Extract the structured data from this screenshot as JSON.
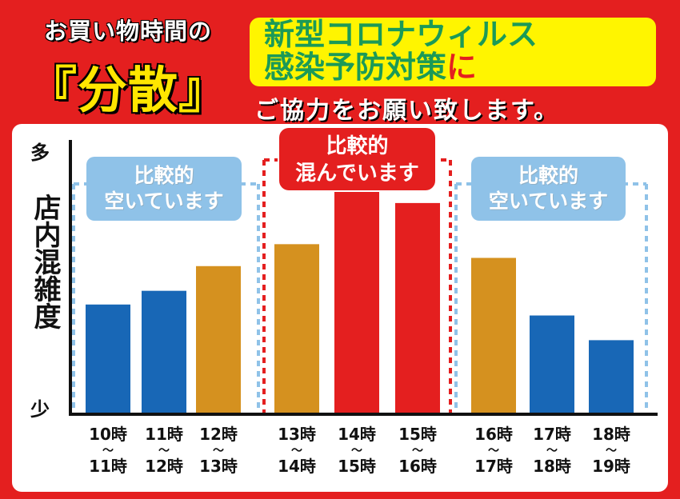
{
  "headline": {
    "line1": "お買い物時間の",
    "line2": "『分散』"
  },
  "notice": {
    "line1": "新型コロナウィルス",
    "line2_main": "感染予防対策",
    "line2_accent": "に"
  },
  "request": "ご協力をお願い致します。",
  "chart_data": {
    "type": "bar",
    "ylabel": "店内混雑度",
    "y_top_label": "多",
    "y_bottom_label": "少",
    "ylim": [
      0,
      100
    ],
    "categories": [
      {
        "start": "10時",
        "end": "11時"
      },
      {
        "start": "11時",
        "end": "12時"
      },
      {
        "start": "12時",
        "end": "13時"
      },
      {
        "start": "13時",
        "end": "14時"
      },
      {
        "start": "14時",
        "end": "15時"
      },
      {
        "start": "15時",
        "end": "16時"
      },
      {
        "start": "16時",
        "end": "17時"
      },
      {
        "start": "17時",
        "end": "18時"
      },
      {
        "start": "18時",
        "end": "19時"
      }
    ],
    "tilde": "〜",
    "values": [
      40,
      45,
      54,
      62,
      82,
      77,
      57,
      36,
      27
    ],
    "bar_colors": [
      "#1867b6",
      "#1867b6",
      "#d5911f",
      "#d5911f",
      "#e41f1f",
      "#e41f1f",
      "#d5911f",
      "#1867b6",
      "#1867b6"
    ],
    "groups": [
      {
        "label_line1": "比較的",
        "label_line2": "空いています",
        "color": "#8fc2e8"
      },
      {
        "label_line1": "比較的",
        "label_line2": "混んでいます",
        "color": "#e41f1f"
      },
      {
        "label_line1": "比較的",
        "label_line2": "空いています",
        "color": "#8fc2e8"
      }
    ]
  }
}
